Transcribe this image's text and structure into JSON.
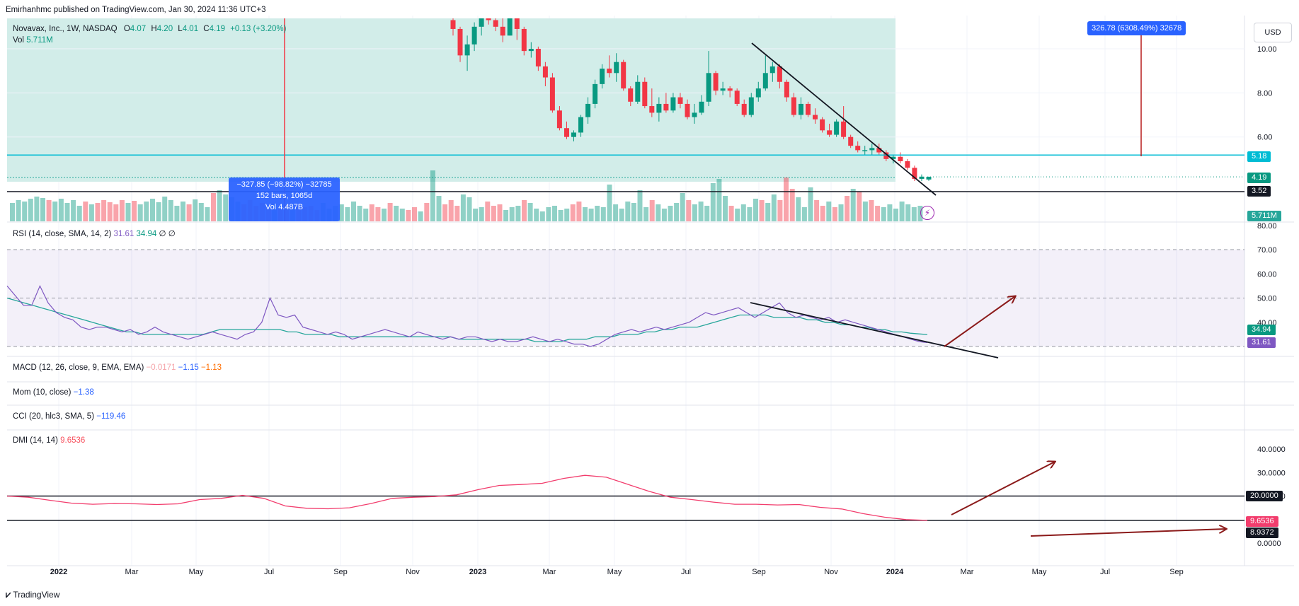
{
  "header": {
    "published": "Emirhanhmc published on TradingView.com, Jan 30, 2024 11:36 UTC+3"
  },
  "instrument": {
    "title": "Novavax, Inc., 1W, NASDAQ",
    "o_label": "O",
    "o": "4.07",
    "h_label": "H",
    "h": "4.20",
    "l_label": "L",
    "l": "4.01",
    "c_label": "C",
    "c": "4.19",
    "change": "+0.13 (+3.20%)",
    "vol_label": "Vol",
    "vol": "5.711M"
  },
  "currency": "USD",
  "measure_up": "326.78 (6308.49%) 32678",
  "measure_down": {
    "line1": "−327.85 (−98.82%) −32785",
    "line2": "152 bars, 1065d",
    "line3": "Vol 4.487B"
  },
  "price_tags": {
    "top": "5.18",
    "current": "4.19",
    "support": "3.52",
    "volume": "5.711M"
  },
  "rsi": {
    "label": "RSI (14, close, SMA, 14, 2)",
    "v1": "31.61",
    "v2": "34.94",
    "v3": "∅",
    "v4": "∅",
    "tag_sma": "34.94",
    "tag_rsi": "31.61"
  },
  "macd": {
    "label": "MACD (12, 26, close, 9, EMA, EMA)",
    "v1": "−0.0171",
    "v2": "−1.15",
    "v3": "−1.13"
  },
  "mom": {
    "label": "Mom (10, close)",
    "v1": "−1.38"
  },
  "cci": {
    "label": "CCI (20, hlc3, SMA, 5)",
    "v1": "−119.46"
  },
  "dmi": {
    "label": "DMI (14, 14)",
    "v1": "9.6536",
    "tag_top": "20.0000",
    "tag_adx": "9.6536",
    "tag_low": "8.9372"
  },
  "footer": {
    "brand": "TradingView"
  },
  "colors": {
    "up": "#089981",
    "down": "#f23645",
    "rsi": "#7e57c2",
    "rsi_ma": "#26a69a",
    "dmi": "#f23d6d",
    "zone": "#d2ede9",
    "cyan": "#00bcd4",
    "arrow": "#8b1a1a"
  },
  "chart_data": [
    {
      "type": "candlestick",
      "title": "Novavax, Inc., 1W, NASDAQ",
      "price_axis_ticks": [
        "10.00",
        "8.00",
        "6.00"
      ],
      "time_axis_ticks": [
        "2022",
        "Mar",
        "May",
        "Jul",
        "Sep",
        "Nov",
        "2023",
        "Mar",
        "May",
        "Jul",
        "Sep",
        "Nov",
        "2024",
        "Mar",
        "May",
        "Jul",
        "Sep"
      ],
      "ylim": [
        3.0,
        11.8
      ],
      "horizontal_levels": [
        5.18,
        3.52
      ],
      "last_ohlc": [
        4.07,
        4.2,
        4.01,
        4.19
      ],
      "candles_ohlc_2022_11_to_2024_01": [
        [
          11.3,
          11.8,
          10.6,
          10.9
        ],
        [
          10.9,
          11.0,
          9.4,
          9.7
        ],
        [
          9.7,
          10.6,
          9.0,
          10.2
        ],
        [
          10.2,
          11.2,
          9.9,
          11.0
        ],
        [
          11.0,
          11.8,
          10.6,
          11.5
        ],
        [
          11.5,
          11.8,
          11.1,
          11.3
        ],
        [
          11.3,
          11.6,
          10.8,
          11.0
        ],
        [
          11.0,
          11.5,
          10.3,
          10.6
        ],
        [
          10.6,
          11.8,
          10.6,
          11.5
        ],
        [
          11.5,
          11.6,
          10.4,
          10.9
        ],
        [
          10.9,
          11.0,
          9.7,
          9.9
        ],
        [
          9.9,
          10.3,
          9.6,
          10.0
        ],
        [
          10.0,
          10.1,
          9.0,
          9.2
        ],
        [
          9.2,
          9.4,
          8.3,
          8.7
        ],
        [
          8.7,
          8.9,
          7.1,
          7.2
        ],
        [
          7.2,
          7.4,
          6.3,
          6.4
        ],
        [
          6.4,
          6.7,
          5.9,
          6.0
        ],
        [
          6.0,
          6.3,
          5.8,
          6.2
        ],
        [
          6.2,
          7.0,
          6.0,
          6.9
        ],
        [
          6.9,
          7.8,
          6.6,
          7.5
        ],
        [
          7.5,
          8.6,
          7.3,
          8.4
        ],
        [
          8.4,
          9.3,
          8.2,
          9.1
        ],
        [
          9.1,
          9.7,
          8.7,
          8.9
        ],
        [
          8.9,
          9.8,
          8.5,
          9.4
        ],
        [
          9.4,
          9.5,
          8.1,
          8.2
        ],
        [
          8.2,
          8.3,
          7.4,
          7.6
        ],
        [
          7.6,
          8.8,
          7.5,
          8.5
        ],
        [
          8.5,
          8.7,
          7.3,
          7.4
        ],
        [
          7.4,
          8.2,
          6.9,
          7.1
        ],
        [
          7.1,
          7.8,
          6.7,
          7.5
        ],
        [
          7.5,
          8.0,
          7.1,
          7.2
        ],
        [
          7.2,
          8.0,
          7.1,
          7.8
        ],
        [
          7.8,
          8.0,
          7.3,
          7.5
        ],
        [
          7.5,
          7.7,
          6.8,
          6.9
        ],
        [
          6.9,
          7.5,
          6.6,
          7.1
        ],
        [
          7.1,
          7.9,
          7.0,
          7.6
        ],
        [
          7.6,
          9.9,
          7.4,
          8.9
        ],
        [
          8.9,
          9.0,
          7.9,
          8.1
        ],
        [
          8.1,
          8.5,
          7.9,
          8.2
        ],
        [
          8.2,
          8.3,
          7.8,
          8.1
        ],
        [
          8.1,
          8.2,
          7.4,
          7.5
        ],
        [
          7.5,
          7.7,
          6.9,
          7.0
        ],
        [
          7.0,
          8.0,
          6.9,
          7.8
        ],
        [
          7.8,
          8.5,
          7.6,
          8.2
        ],
        [
          8.2,
          9.7,
          8.1,
          8.9
        ],
        [
          8.9,
          9.4,
          8.5,
          9.2
        ],
        [
          9.2,
          9.3,
          8.2,
          8.5
        ],
        [
          8.5,
          8.6,
          7.6,
          7.8
        ],
        [
          7.8,
          8.0,
          6.9,
          7.0
        ],
        [
          7.0,
          7.8,
          6.8,
          7.5
        ],
        [
          7.5,
          7.6,
          6.9,
          7.0
        ],
        [
          7.0,
          7.3,
          6.6,
          6.8
        ],
        [
          6.8,
          6.9,
          6.2,
          6.3
        ],
        [
          6.3,
          6.6,
          6.0,
          6.1
        ],
        [
          6.1,
          6.8,
          6.0,
          6.7
        ],
        [
          6.7,
          7.4,
          5.9,
          6.0
        ],
        [
          6.0,
          6.1,
          5.5,
          5.6
        ],
        [
          5.6,
          5.8,
          5.3,
          5.4
        ],
        [
          5.4,
          5.6,
          5.2,
          5.4
        ],
        [
          5.4,
          5.7,
          5.2,
          5.5
        ],
        [
          5.5,
          5.7,
          5.2,
          5.3
        ],
        [
          5.3,
          5.4,
          4.9,
          5.0
        ],
        [
          5.0,
          5.2,
          4.8,
          5.1
        ],
        [
          5.1,
          5.3,
          4.8,
          4.9
        ],
        [
          4.9,
          5.0,
          4.5,
          4.6
        ],
        [
          4.6,
          4.7,
          4.0,
          4.1
        ],
        [
          4.1,
          4.3,
          4.0,
          4.2
        ],
        [
          4.07,
          4.2,
          4.01,
          4.19
        ]
      ]
    },
    {
      "type": "line",
      "title": "RSI (14, close, SMA, 14, 2)",
      "y_axis_ticks": [
        "80.00",
        "70.00",
        "60.00",
        "50.00",
        "40.00"
      ],
      "ylim": [
        28,
        80
      ],
      "bands": [
        70,
        50,
        30
      ],
      "series": [
        {
          "name": "RSI",
          "values": [
            55,
            51,
            47,
            47,
            55,
            48,
            44,
            42,
            41,
            38,
            37,
            38,
            38,
            37,
            36,
            37,
            35,
            36,
            38,
            36,
            35,
            34,
            33,
            34,
            35,
            36,
            35,
            34,
            33,
            35,
            36,
            40,
            50,
            43,
            42,
            43,
            38,
            37,
            36,
            35,
            36,
            35,
            33,
            34,
            35,
            36,
            37,
            36,
            35,
            34,
            36,
            35,
            34,
            33,
            34,
            33,
            34,
            34,
            33,
            32,
            33,
            32,
            32,
            33,
            34,
            33,
            32,
            33,
            32,
            31,
            31,
            30,
            31,
            33,
            35,
            36,
            37,
            36,
            37,
            38,
            37,
            38,
            39,
            40,
            42,
            44,
            43,
            44,
            45,
            46,
            44,
            42,
            44,
            46,
            48,
            44,
            42,
            43,
            42,
            41,
            42,
            40,
            41,
            40,
            39,
            38,
            37,
            36,
            35,
            34,
            33,
            32,
            31.6
          ]
        },
        {
          "name": "SMA",
          "values": [
            50,
            49,
            48,
            47,
            46,
            45,
            44,
            43,
            42,
            41,
            40,
            39,
            38,
            37,
            36,
            36,
            35,
            35,
            35,
            35,
            35,
            35,
            35,
            35,
            36,
            37,
            37,
            37,
            37,
            37,
            37,
            37,
            37,
            36,
            36,
            35,
            35,
            35,
            35,
            34,
            34,
            34,
            34,
            34,
            34,
            34,
            34,
            34,
            34,
            34,
            34,
            34,
            34,
            33,
            33,
            33,
            33,
            33,
            33,
            33,
            33,
            33,
            32,
            32,
            32,
            32,
            33,
            33,
            33,
            34,
            34,
            34,
            35,
            35,
            35,
            36,
            36,
            37,
            37,
            38,
            38,
            38,
            39,
            40,
            41,
            42,
            43,
            43,
            43,
            43,
            42,
            42,
            42,
            42,
            41,
            41,
            40,
            40,
            39,
            39,
            38,
            38,
            37,
            37,
            36,
            36,
            35.5,
            35.2,
            34.94
          ]
        }
      ]
    },
    {
      "type": "line",
      "title": "DMI (14, 14)",
      "y_axis_ticks": [
        "40.0000",
        "30.0000",
        "20.0000",
        "0.0000"
      ],
      "ylim": [
        0,
        40
      ],
      "horizontal_levels": [
        20,
        9.6536
      ],
      "series": [
        {
          "name": "ADX",
          "values": [
            20.0,
            19.5,
            18.2,
            17.0,
            16.5,
            16.8,
            16.7,
            16.4,
            16.7,
            18.5,
            19.0,
            20.3,
            19.0,
            15.8,
            14.8,
            14.6,
            15.0,
            16.8,
            19.0,
            19.5,
            19.8,
            20.5,
            22.7,
            24.5,
            24.9,
            25.4,
            27.5,
            28.8,
            28.0,
            25.0,
            22.0,
            19.5,
            18.5,
            17.4,
            16.5,
            16.5,
            16.2,
            16.4,
            15.2,
            14.5,
            12.5,
            11.0,
            10.0,
            9.65
          ]
        }
      ]
    }
  ]
}
